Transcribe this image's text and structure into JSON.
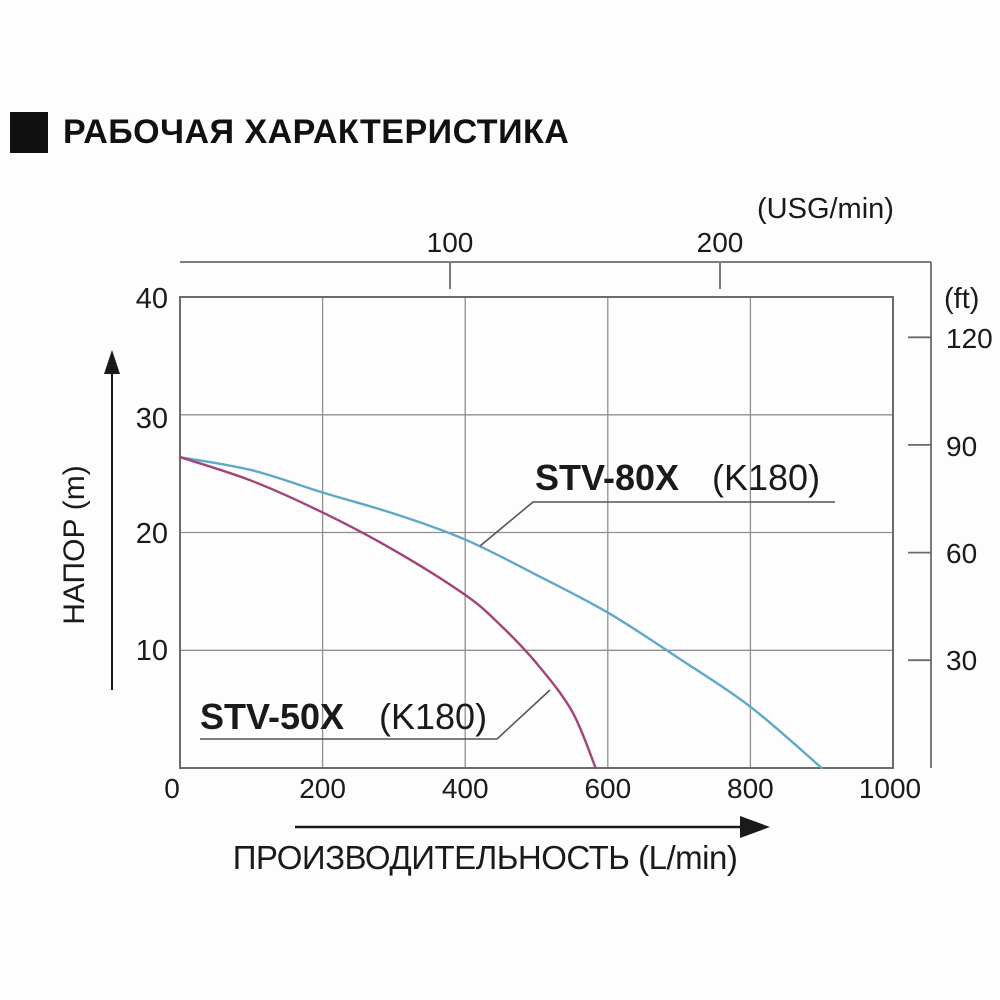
{
  "title": {
    "text": "РАБОЧАЯ ХАРАКТЕРИСТИКА"
  },
  "axes": {
    "top": {
      "unit": "(USG/min)",
      "ticks": [
        "100",
        "200"
      ]
    },
    "right": {
      "unit": "(ft)",
      "ticks": [
        "120",
        "90",
        "60",
        "30"
      ]
    },
    "left": {
      "title": "НАПОР  (m)",
      "ticks": [
        "40",
        "30",
        "20",
        "10"
      ]
    },
    "bottom": {
      "title": "ПРОИЗВОДИТЕЛЬНОСТЬ (L/min)",
      "ticks": [
        "0",
        "200",
        "400",
        "600",
        "800",
        "1000"
      ]
    }
  },
  "series_labels": {
    "stv80x": {
      "model": "STV-80X",
      "variant": "(K180)",
      "color": "#2d9fd6"
    },
    "stv50x": {
      "model": "STV-50X",
      "variant": "(K180)",
      "color": "#d0126f"
    }
  },
  "colors": {
    "curve_stv80x": "#5fa8c8",
    "curve_stv50x": "#a34478",
    "grid": "#8f8f8f",
    "frame": "#6b6b6b",
    "leader": "#555555",
    "arrow": "#1a1a1a"
  },
  "chart_data": {
    "type": "line",
    "title": "РАБОЧАЯ ХАРАКТЕРИСТИКА",
    "xlabel": "ПРОИЗВОДИТЕЛЬНОСТЬ (L/min)",
    "ylabel": "НАПОР (m)",
    "x2label": "(USG/min)",
    "y2label": "(ft)",
    "xlim": [
      0,
      1000
    ],
    "ylim": [
      0,
      40
    ],
    "x_ticks_l_min": [
      0,
      200,
      400,
      600,
      800,
      1000
    ],
    "y_ticks_m": [
      10,
      20,
      30,
      40
    ],
    "x2_ticks_usg_min": [
      100,
      200
    ],
    "y2_ticks_ft": [
      30,
      60,
      90,
      120
    ],
    "grid": true,
    "series": [
      {
        "name": "STV-80X (K180)",
        "color": "#5fa8c8",
        "points": [
          [
            0,
            26.4
          ],
          [
            100,
            25.3
          ],
          [
            200,
            23.4
          ],
          [
            300,
            21.6
          ],
          [
            400,
            19.4
          ],
          [
            500,
            16.4
          ],
          [
            600,
            13.2
          ],
          [
            700,
            9.3
          ],
          [
            800,
            5.2
          ],
          [
            900,
            0
          ]
        ]
      },
      {
        "name": "STV-50X (K180)",
        "color": "#a34478",
        "points": [
          [
            0,
            26.4
          ],
          [
            100,
            24.4
          ],
          [
            200,
            21.7
          ],
          [
            300,
            18.5
          ],
          [
            400,
            14.7
          ],
          [
            450,
            12.1
          ],
          [
            500,
            8.9
          ],
          [
            550,
            4.8
          ],
          [
            583,
            0
          ]
        ]
      }
    ]
  }
}
